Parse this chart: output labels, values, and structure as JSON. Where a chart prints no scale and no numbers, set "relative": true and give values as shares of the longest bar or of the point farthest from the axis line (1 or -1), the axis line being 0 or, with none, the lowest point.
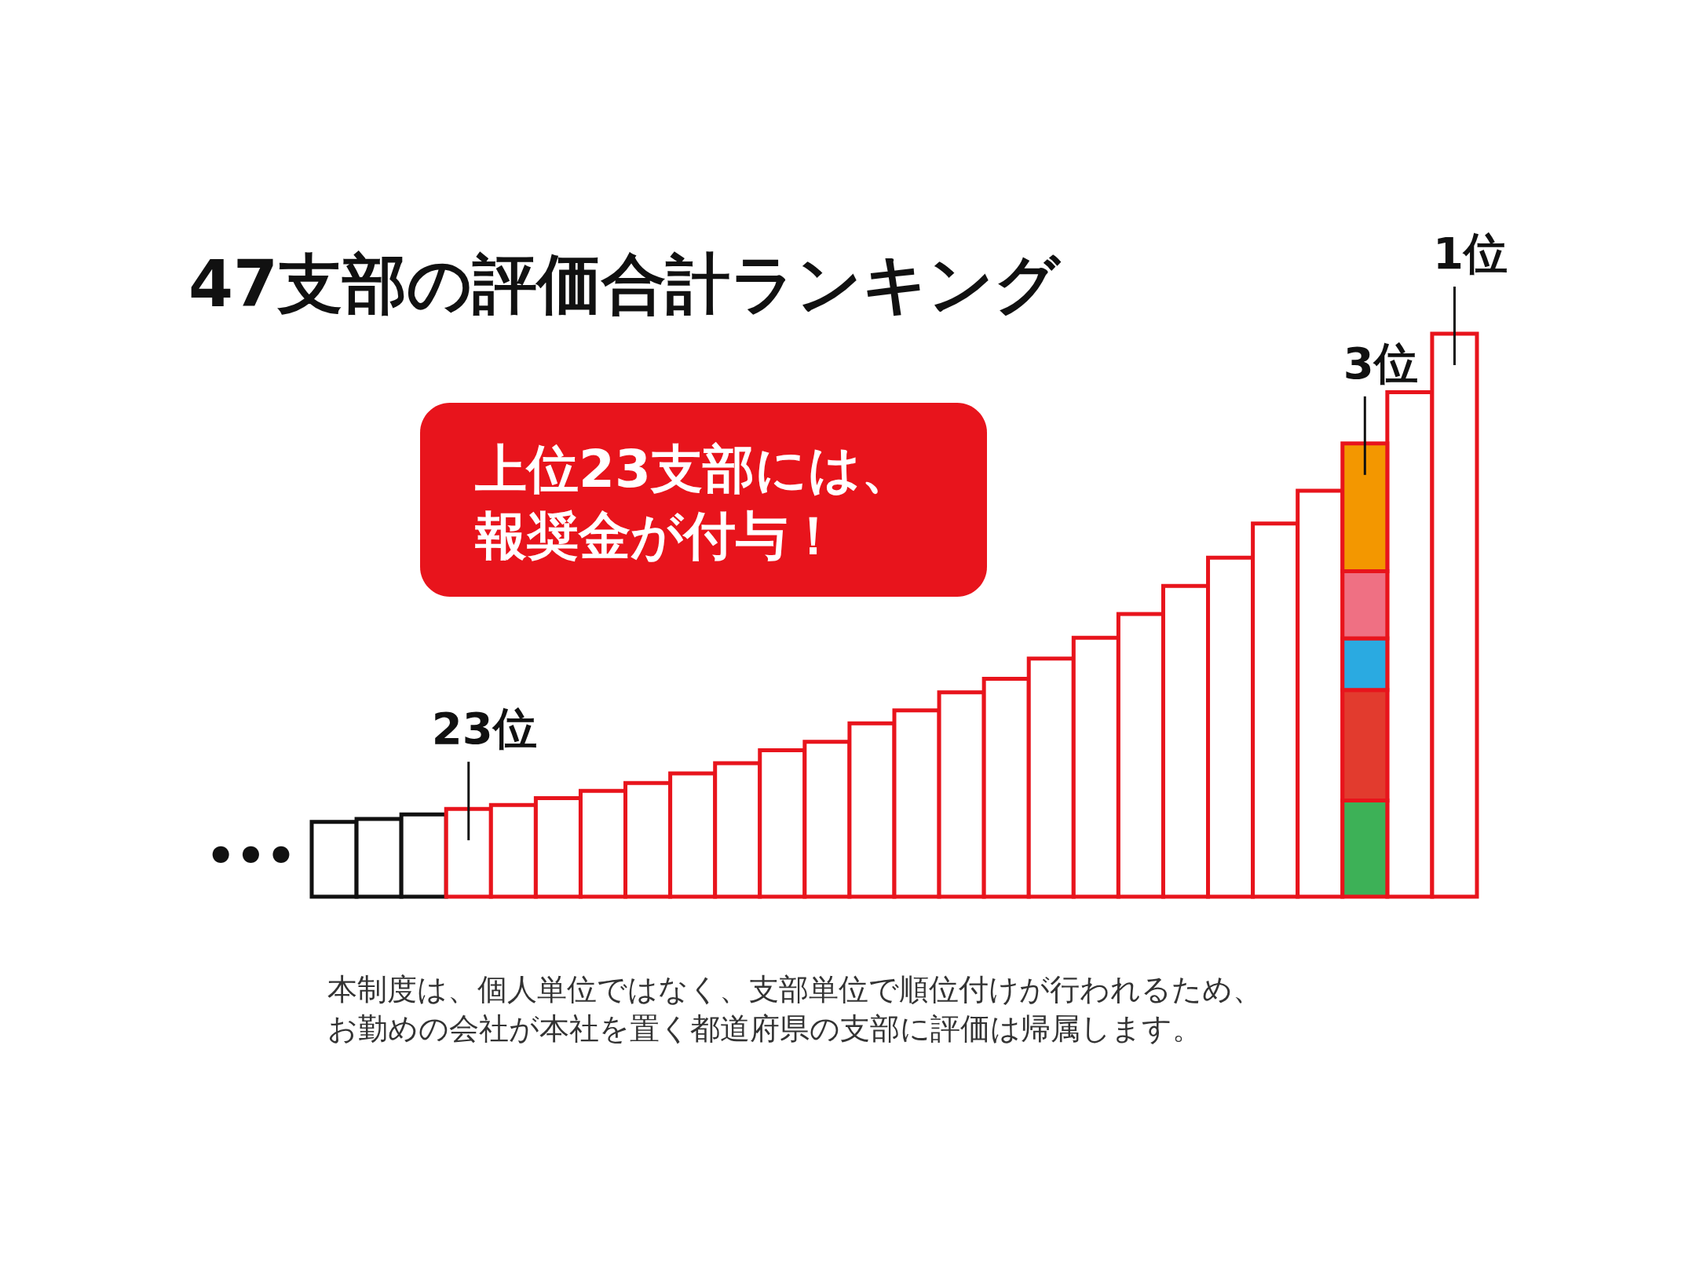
{
  "chart_data": {
    "type": "bar",
    "title": "47支部の評価合計ランキング",
    "relative": true,
    "stacked": true,
    "categories": [
      null,
      null,
      null,
      null,
      null,
      null,
      null,
      null,
      null,
      null,
      null,
      null,
      null,
      null,
      null,
      null,
      null,
      null,
      null,
      null,
      null,
      null,
      null,
      null,
      null,
      null
    ],
    "colors": [
      "#111111",
      "#111111",
      "#111111",
      "#e8141c",
      "#e8141c",
      "#e8141c",
      "#e8141c",
      "#e8141c",
      "#e8141c",
      "#e8141c",
      "#e8141c",
      "#e8141c",
      "#e8141c",
      "#e8141c",
      "#e8141c",
      "#e8141c",
      "#e8141c",
      "#e8141c",
      "#e8141c",
      "#e8141c",
      "#e8141c",
      "#e8141c",
      "#e8141c",
      "#e8141c",
      "#e8141c",
      "#e8141c"
    ],
    "series": [
      {
        "color": "#ffffff",
        "values": [
          0.133,
          0.138,
          0.146,
          0.156,
          0.163,
          0.175,
          0.188,
          0.202,
          0.219,
          0.237,
          0.26,
          0.275,
          0.308,
          0.331,
          0.363,
          0.387,
          0.423,
          0.46,
          0.502,
          0.552,
          0.602,
          0.663,
          0.721,
          null,
          0.896,
          1
        ]
      },
      {
        "color": "#3db157",
        "values": [
          null,
          null,
          null,
          null,
          null,
          null,
          null,
          null,
          null,
          null,
          null,
          null,
          null,
          null,
          null,
          null,
          null,
          null,
          null,
          null,
          null,
          null,
          null,
          0.171,
          null,
          null
        ]
      },
      {
        "color": "#e23b2e",
        "values": [
          null,
          null,
          null,
          null,
          null,
          null,
          null,
          null,
          null,
          null,
          null,
          null,
          null,
          null,
          null,
          null,
          null,
          null,
          null,
          null,
          null,
          null,
          null,
          0.196,
          null,
          null
        ]
      },
      {
        "color": "#2aaae1",
        "values": [
          null,
          null,
          null,
          null,
          null,
          null,
          null,
          null,
          null,
          null,
          null,
          null,
          null,
          null,
          null,
          null,
          null,
          null,
          null,
          null,
          null,
          null,
          null,
          0.092,
          null,
          null
        ]
      },
      {
        "color": "#ef7083",
        "values": [
          null,
          null,
          null,
          null,
          null,
          null,
          null,
          null,
          null,
          null,
          null,
          null,
          null,
          null,
          null,
          null,
          null,
          null,
          null,
          null,
          null,
          null,
          null,
          0.119,
          null,
          null
        ]
      },
      {
        "color": "#f39700",
        "values": [
          null,
          null,
          null,
          null,
          null,
          null,
          null,
          null,
          null,
          null,
          null,
          null,
          null,
          null,
          null,
          null,
          null,
          null,
          null,
          null,
          null,
          null,
          null,
          0.227,
          null,
          null
        ]
      }
    ],
    "value_labels": [
      null,
      null,
      null,
      "23位",
      null,
      null,
      null,
      null,
      null,
      null,
      null,
      null,
      null,
      null,
      null,
      null,
      null,
      null,
      null,
      null,
      null,
      null,
      null,
      "3位",
      null,
      "1位"
    ],
    "annotations": [
      "•••",
      "上位23支部には、",
      "報奨金が付与！",
      "本制度は、個人単位ではなく、支部単位で順位付けが行われるため、",
      "お勤めの会社が本社を置く都道府県の支部に評価は帰属します。"
    ]
  }
}
